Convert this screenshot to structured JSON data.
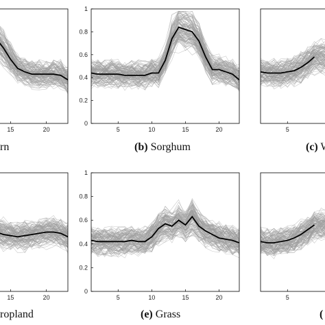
{
  "figure": {
    "panels_visible": [
      "a",
      "b",
      "c",
      "d",
      "e",
      "f"
    ],
    "colors": {
      "background_line": "#9c9c9c",
      "mean_line": "#000000",
      "axes": "#000000"
    }
  },
  "chart_data": [
    {
      "id": "a",
      "type": "line",
      "caption_label": "",
      "caption_text": "rn",
      "xlim": [
        1,
        23
      ],
      "ylim": [
        0,
        1
      ],
      "xticks": [
        15,
        20
      ],
      "yticks": [],
      "series": [
        {
          "role": "mean",
          "x": [
            9,
            10,
            11,
            12,
            13,
            14,
            15,
            16,
            17,
            18,
            19,
            20,
            21,
            22,
            23
          ],
          "y": [
            0.74,
            0.8,
            0.84,
            0.8,
            0.74,
            0.66,
            0.56,
            0.48,
            0.45,
            0.43,
            0.43,
            0.43,
            0.43,
            0.42,
            0.38
          ]
        }
      ]
    },
    {
      "id": "b",
      "type": "line",
      "caption_label": "(b)",
      "caption_text": "Sorghum",
      "xlim": [
        1,
        23
      ],
      "ylim": [
        0,
        1
      ],
      "xticks": [
        5,
        10,
        15,
        20
      ],
      "yticks": [
        0,
        0.2,
        0.4,
        0.6,
        0.8,
        1
      ],
      "series": [
        {
          "role": "mean",
          "x": [
            1,
            2,
            3,
            4,
            5,
            6,
            7,
            8,
            9,
            10,
            11,
            12,
            13,
            14,
            15,
            16,
            17,
            18,
            19,
            20,
            21,
            22,
            23
          ],
          "y": [
            0.44,
            0.43,
            0.43,
            0.43,
            0.43,
            0.42,
            0.42,
            0.42,
            0.42,
            0.44,
            0.44,
            0.55,
            0.74,
            0.84,
            0.82,
            0.8,
            0.72,
            0.58,
            0.47,
            0.47,
            0.45,
            0.43,
            0.38
          ]
        }
      ]
    },
    {
      "id": "c",
      "type": "line",
      "caption_label": "(c)",
      "caption_text": "W",
      "xlim": [
        1,
        23
      ],
      "ylim": [
        0,
        1
      ],
      "xticks": [
        5
      ],
      "yticks": [],
      "series": [
        {
          "role": "mean",
          "x": [
            1,
            2,
            3,
            4,
            5,
            6,
            7,
            8,
            9
          ],
          "y": [
            0.45,
            0.44,
            0.44,
            0.44,
            0.45,
            0.46,
            0.49,
            0.53,
            0.58
          ]
        }
      ]
    },
    {
      "id": "d",
      "type": "line",
      "caption_label": "",
      "caption_text": "ropland",
      "xlim": [
        1,
        23
      ],
      "ylim": [
        0,
        1
      ],
      "xticks": [
        15,
        20
      ],
      "yticks": [],
      "series": [
        {
          "role": "mean",
          "x": [
            10,
            11,
            12,
            13,
            14,
            15,
            16,
            17,
            18,
            19,
            20,
            21,
            22,
            23
          ],
          "y": [
            0.53,
            0.52,
            0.51,
            0.5,
            0.48,
            0.47,
            0.46,
            0.47,
            0.48,
            0.49,
            0.5,
            0.5,
            0.49,
            0.46
          ]
        }
      ]
    },
    {
      "id": "e",
      "type": "line",
      "caption_label": "(e)",
      "caption_text": "Grass",
      "xlim": [
        1,
        23
      ],
      "ylim": [
        0,
        1
      ],
      "xticks": [
        5,
        10,
        15,
        20
      ],
      "yticks": [
        0,
        0.2,
        0.4,
        0.6,
        0.8,
        1
      ],
      "series": [
        {
          "role": "mean",
          "x": [
            1,
            2,
            3,
            4,
            5,
            6,
            7,
            8,
            9,
            10,
            11,
            12,
            13,
            14,
            15,
            16,
            17,
            18,
            19,
            20,
            21,
            22,
            23
          ],
          "y": [
            0.43,
            0.42,
            0.42,
            0.42,
            0.42,
            0.42,
            0.43,
            0.42,
            0.42,
            0.46,
            0.53,
            0.57,
            0.55,
            0.6,
            0.56,
            0.63,
            0.55,
            0.51,
            0.48,
            0.45,
            0.44,
            0.43,
            0.41
          ]
        }
      ]
    },
    {
      "id": "f",
      "type": "line",
      "caption_label": "(",
      "caption_text": "",
      "xlim": [
        1,
        23
      ],
      "ylim": [
        0,
        1
      ],
      "xticks": [
        5
      ],
      "yticks": [],
      "series": [
        {
          "role": "mean",
          "x": [
            1,
            2,
            3,
            4,
            5,
            6,
            7,
            8,
            9
          ],
          "y": [
            0.42,
            0.41,
            0.41,
            0.42,
            0.43,
            0.45,
            0.48,
            0.52,
            0.56
          ]
        }
      ]
    }
  ]
}
